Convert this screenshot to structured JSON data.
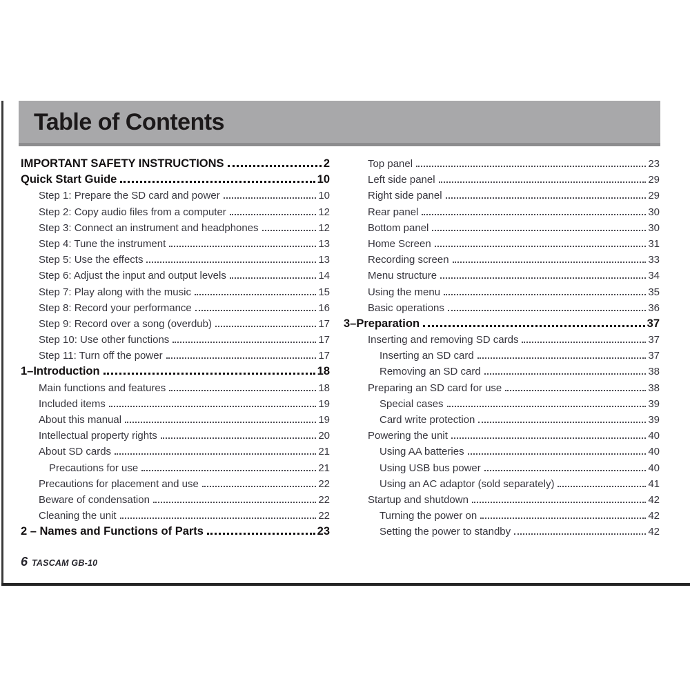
{
  "header": {
    "title": "Table of Contents"
  },
  "footer": {
    "page_number": "6",
    "model": "TASCAM GB-10"
  },
  "colors": {
    "banner_gray": "#a8a8aa",
    "banner_edge_gray": "#8d8d8f",
    "heading_text": "#131011",
    "body_text": "#37363e"
  },
  "toc": {
    "left": [
      {
        "text": "IMPORTANT SAFETY INSTRUCTIONS",
        "page": "2",
        "level": 0
      },
      {
        "text": "Quick Start Guide",
        "page": "10",
        "level": 0
      },
      {
        "text": "Step 1: Prepare the SD card and power",
        "page": "10",
        "level": 1
      },
      {
        "text": "Step 2: Copy audio files from a computer",
        "page": "12",
        "level": 1
      },
      {
        "text": "Step 3: Connect an instrument and headphones",
        "page": "12",
        "level": 1
      },
      {
        "text": "Step 4: Tune the instrument",
        "page": "13",
        "level": 1
      },
      {
        "text": "Step 5: Use the effects",
        "page": "13",
        "level": 1
      },
      {
        "text": "Step 6: Adjust the input and output levels",
        "page": "14",
        "level": 1
      },
      {
        "text": "Step 7: Play along with the music",
        "page": "15",
        "level": 1
      },
      {
        "text": "Step 8: Record your performance",
        "page": "16",
        "level": 1
      },
      {
        "text": "Step 9: Record over a song (overdub)",
        "page": "17",
        "level": 1
      },
      {
        "text": "Step 10: Use other functions",
        "page": "17",
        "level": 1
      },
      {
        "text": "Step 11: Turn off the power",
        "page": "17",
        "level": 1
      },
      {
        "text": "1–Introduction",
        "page": "18",
        "level": 0
      },
      {
        "text": "Main functions and features",
        "page": "18",
        "level": 1
      },
      {
        "text": "Included items",
        "page": "19",
        "level": 1
      },
      {
        "text": "About this manual",
        "page": "19",
        "level": 1
      },
      {
        "text": "Intellectual property rights",
        "page": "20",
        "level": 1
      },
      {
        "text": "About SD cards",
        "page": "21",
        "level": 1
      },
      {
        "text": "Precautions for use",
        "page": "21",
        "level": 2
      },
      {
        "text": "Precautions for placement and use",
        "page": "22",
        "level": 1
      },
      {
        "text": "Beware of condensation",
        "page": "22",
        "level": 1
      },
      {
        "text": "Cleaning the unit",
        "page": "22",
        "level": 1
      },
      {
        "text": "2 – Names and Functions of Parts",
        "page": "23",
        "level": 0
      }
    ],
    "right": [
      {
        "text": "Top panel",
        "page": "23",
        "level": 1
      },
      {
        "text": "Left side panel",
        "page": "29",
        "level": 1
      },
      {
        "text": "Right side panel",
        "page": "29",
        "level": 1
      },
      {
        "text": "Rear panel",
        "page": "30",
        "level": 1
      },
      {
        "text": "Bottom panel",
        "page": "30",
        "level": 1
      },
      {
        "text": "Home Screen",
        "page": "31",
        "level": 1
      },
      {
        "text": "Recording screen",
        "page": "33",
        "level": 1
      },
      {
        "text": "Menu structure",
        "page": "34",
        "level": 1
      },
      {
        "text": "Using the menu",
        "page": "35",
        "level": 1
      },
      {
        "text": "Basic operations",
        "page": "36",
        "level": 1
      },
      {
        "text": "3–Preparation",
        "page": "37",
        "level": 0
      },
      {
        "text": "Inserting and removing SD cards",
        "page": "37",
        "level": 1
      },
      {
        "text": "Inserting an SD card",
        "page": "37",
        "level": 2
      },
      {
        "text": "Removing an SD card",
        "page": "38",
        "level": 2
      },
      {
        "text": "Preparing an SD card for use",
        "page": "38",
        "level": 1
      },
      {
        "text": "Special cases",
        "page": "39",
        "level": 2
      },
      {
        "text": "Card write protection",
        "page": "39",
        "level": 2
      },
      {
        "text": "Powering the unit",
        "page": "40",
        "level": 1
      },
      {
        "text": "Using AA batteries",
        "page": "40",
        "level": 2
      },
      {
        "text": "Using USB bus power",
        "page": "40",
        "level": 2
      },
      {
        "text": "Using an AC adaptor (sold separately)",
        "page": "41",
        "level": 2
      },
      {
        "text": "Startup and shutdown",
        "page": "42",
        "level": 1
      },
      {
        "text": "Turning the power on",
        "page": "42",
        "level": 2
      },
      {
        "text": "Setting the power to standby",
        "page": "42",
        "level": 2
      }
    ]
  }
}
